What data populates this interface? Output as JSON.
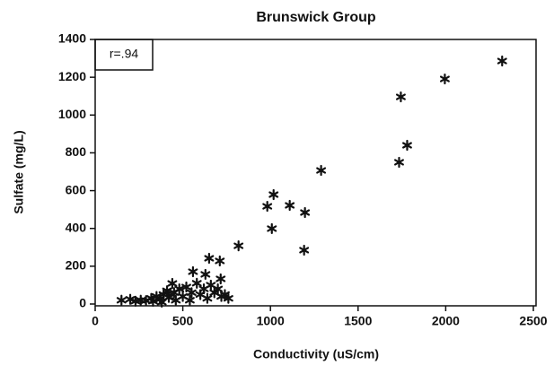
{
  "chart_data": {
    "type": "scatter",
    "title": "Brunswick Group",
    "x_label": "Conductivity (uS/cm)",
    "y_label": "Sulfate (mg/L)",
    "annotation": "r=.94",
    "color": "#111111",
    "xlim": [
      0,
      2500
    ],
    "ylim": [
      0,
      1400
    ],
    "xticks": [
      0,
      500,
      1000,
      1500,
      2000,
      2500
    ],
    "yticks": [
      0,
      200,
      400,
      600,
      800,
      1000,
      1200,
      1400
    ],
    "x": [
      2322,
      1995,
      1744,
      1780,
      1734,
      1289,
      1018,
      982,
      1110,
      1197,
      1008,
      1192,
      818,
      650,
      711,
      558,
      629,
      716,
      440,
      150,
      200,
      230,
      260,
      290,
      320,
      350,
      370,
      390,
      410,
      420,
      450,
      480,
      500,
      520,
      550,
      580,
      600,
      620,
      640,
      660,
      680,
      700,
      720,
      740,
      760,
      460,
      540,
      380,
      330
    ],
    "y": [
      1286,
      1191,
      1096,
      840,
      750,
      707,
      579,
      517,
      522,
      484,
      399,
      285,
      308,
      242,
      228,
      171,
      157,
      133,
      109,
      20,
      25,
      15,
      20,
      18,
      30,
      40,
      25,
      50,
      70,
      35,
      60,
      80,
      40,
      90,
      60,
      110,
      50,
      80,
      30,
      100,
      60,
      80,
      40,
      50,
      30,
      20,
      20,
      10,
      15
    ]
  }
}
